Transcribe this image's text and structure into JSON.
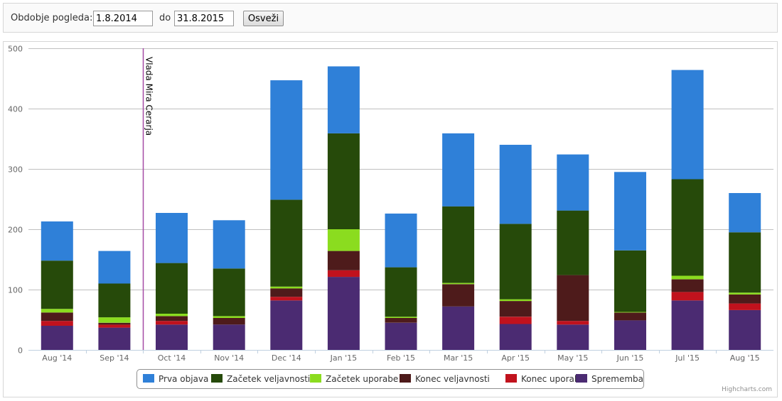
{
  "filter": {
    "period_label": "Obdobje pogleda:",
    "from_value": "1.8.2014",
    "to_label": "do",
    "to_value": "31.8.2015",
    "refresh_label": "Osveži"
  },
  "credits": "Highcharts.com",
  "chart_data": {
    "type": "bar",
    "stacked": true,
    "categories": [
      "Aug '14",
      "Sep '14",
      "Oct '14",
      "Nov '14",
      "Dec '14",
      "Jan '15",
      "Feb '15",
      "Mar '15",
      "Apr '15",
      "May '15",
      "Jun '15",
      "Jul '15",
      "Aug '15"
    ],
    "ylim": [
      0,
      500
    ],
    "yticks": [
      0,
      100,
      200,
      300,
      400,
      500
    ],
    "grid": true,
    "legend_position": "bottom-center",
    "plot_line": {
      "label": "Vlada Mira Cerarja",
      "between_categories": [
        "Sep '14",
        "Oct '14"
      ],
      "color": "#a64ca6"
    },
    "series": [
      {
        "name": "Sprememba",
        "color": "#4b2b72",
        "values": [
          40,
          37,
          42,
          42,
          82,
          121,
          45,
          72,
          43,
          42,
          49,
          82,
          66
        ]
      },
      {
        "name": "Konec uporabe",
        "color": "#c1121d",
        "values": [
          8,
          5,
          6,
          0,
          6,
          11,
          0,
          0,
          12,
          6,
          0,
          14,
          11
        ]
      },
      {
        "name": "Konec veljavnosti",
        "color": "#4e1b1b",
        "values": [
          14,
          3,
          8,
          11,
          14,
          32,
          8,
          37,
          26,
          76,
          13,
          21,
          15
        ]
      },
      {
        "name": "Začetek uporabe",
        "color": "#8bdc1f",
        "values": [
          6,
          9,
          4,
          3,
          3,
          36,
          2,
          2,
          3,
          0,
          1,
          6,
          3
        ]
      },
      {
        "name": "Začetek veljavnosti",
        "color": "#264a0a",
        "values": [
          80,
          56,
          84,
          79,
          144,
          159,
          82,
          127,
          125,
          107,
          102,
          160,
          100
        ]
      },
      {
        "name": "Prva objava",
        "color": "#2f80d8",
        "values": [
          65,
          54,
          83,
          80,
          198,
          111,
          89,
          121,
          131,
          93,
          130,
          181,
          65
        ]
      }
    ],
    "legend_order": [
      "Prva objava",
      "Začetek veljavnosti",
      "Začetek uporabe",
      "Konec veljavnosti",
      "Konec uporabe",
      "Sprememba"
    ]
  }
}
